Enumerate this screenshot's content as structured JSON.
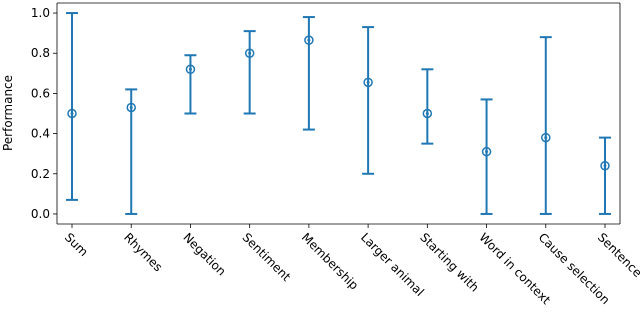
{
  "chart_data": {
    "type": "errorbar",
    "ylabel": "Performance",
    "categories": [
      "Sum",
      "Rhymes",
      "Negation",
      "Sentiment",
      "Membership",
      "Larger animal",
      "Starting with",
      "Word in context",
      "Cause selection",
      "Sentence similarity"
    ],
    "series": [
      {
        "color": "#1f77b4",
        "values": [
          0.5,
          0.53,
          0.72,
          0.8,
          0.865,
          0.655,
          0.5,
          0.31,
          0.38,
          0.24
        ],
        "min": [
          0.07,
          0.0,
          0.5,
          0.5,
          0.42,
          0.2,
          0.35,
          0.0,
          0.0,
          0.0
        ],
        "max": [
          1.0,
          0.62,
          0.79,
          0.91,
          0.98,
          0.93,
          0.72,
          0.57,
          0.88,
          0.38
        ]
      }
    ],
    "ylim": [
      -0.05,
      1.05
    ],
    "yticks": [
      {
        "value": 0,
        "label": "0.0"
      },
      0.2,
      0.4,
      0.6,
      0.8,
      {
        "value": 1,
        "label": "1.0"
      }
    ]
  }
}
